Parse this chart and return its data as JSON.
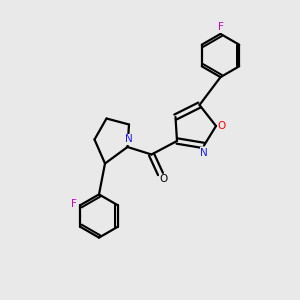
{
  "background_color": "#e9e9e9",
  "bond_color": "#000000",
  "figsize": [
    3.0,
    3.0
  ],
  "dpi": 100,
  "colors": {
    "F": "#cc00cc",
    "N": "#1a1aff",
    "O_ring": "#ff0000",
    "O_carbonyl": "#000000"
  }
}
